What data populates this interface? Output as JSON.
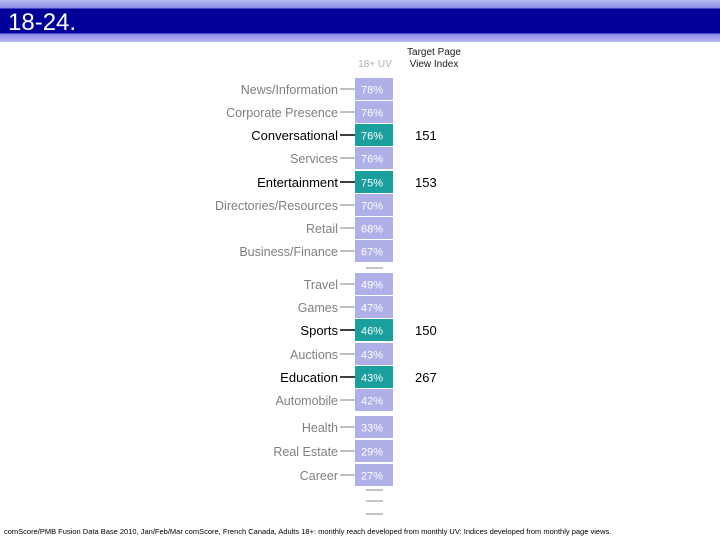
{
  "slide": {
    "title": "18-24.",
    "column_headers": {
      "uv": "18+ UV",
      "index": "Target Page\nView Index"
    },
    "footnote": "comScore/PMB Fusion Data Base 2010, Jan/Feb/Mar comScore, French Canada, Adults 18+: monthly reach developed from monthly UV: Indices developed from monthly page views."
  },
  "colors": {
    "bar_default": "#b0b0e8",
    "bar_highlight": "#1a9e9e",
    "label_default": "#808080",
    "label_highlight": "#000000",
    "value_text": "#ffffff",
    "header_band": "#000099"
  },
  "chart_data": {
    "type": "table",
    "categories": [
      "News/Information",
      "Corporate Presence",
      "Conversational",
      "Services",
      "Entertainment",
      "Directories/Resources",
      "Retail",
      "Business/Finance",
      "Travel",
      "Games",
      "Sports",
      "Auctions",
      "Education",
      "Automobile",
      "Health",
      "Real Estate",
      "Career"
    ],
    "series": [
      {
        "name": "18+ UV",
        "values": [
          "78%",
          "76%",
          "76%",
          "76%",
          "75%",
          "70%",
          "68%",
          "67%",
          "49%",
          "47%",
          "46%",
          "43%",
          "43%",
          "42%",
          "33%",
          "29%",
          "27%"
        ]
      },
      {
        "name": "Target Page View Index",
        "values": [
          "",
          "",
          "151",
          "",
          "153",
          "",
          "",
          "",
          "",
          "",
          "150",
          "",
          "267",
          "",
          "",
          "",
          ""
        ]
      }
    ],
    "highlighted": [
      false,
      false,
      true,
      false,
      true,
      false,
      false,
      false,
      false,
      false,
      true,
      false,
      true,
      false,
      false,
      false,
      false
    ]
  }
}
